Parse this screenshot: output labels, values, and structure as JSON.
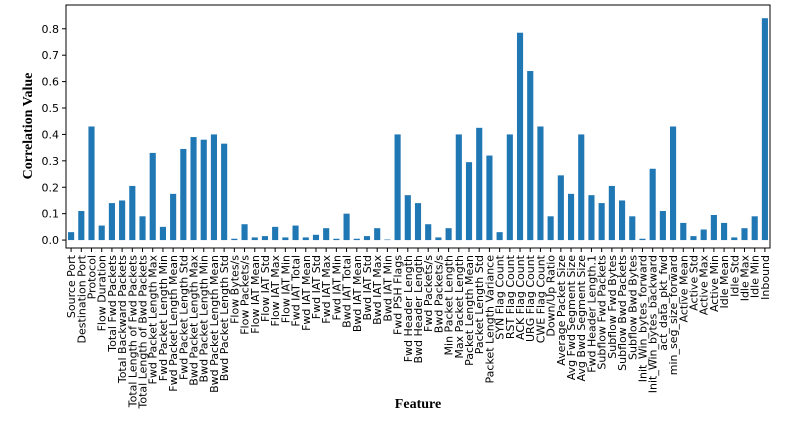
{
  "chart_data": {
    "type": "bar",
    "x_label": "Feature",
    "y_label": "Correlation Value",
    "categories": [
      "Source Port",
      "Destination Port",
      "Protocol",
      "Flow Duration",
      "Total Fwd Packets",
      "Total Backward Packets",
      "Total Length of Fwd Packets",
      "Total Length of Bwd Packets",
      "Fwd Packet Length Max",
      "Fwd Packet Length Min",
      "Fwd Packet Length Mean",
      "Fwd Packet Length Std",
      "Bwd Packet Length Max",
      "Bwd Packet Length Min",
      "Bwd Packet Length Mean",
      "Bwd Packet Length Std",
      "Flow Bytes/s",
      "Flow Packets/s",
      "Flow IAT Mean",
      "Flow IAT Std",
      "Flow IAT Max",
      "Flow IAT Min",
      "Fwd IAT Total",
      "Fwd IAT Mean",
      "Fwd IAT Std",
      "Fwd IAT Max",
      "Fwd IAT Min",
      "Bwd IAT Total",
      "Bwd IAT Mean",
      "Bwd IAT Std",
      "Bwd IAT Max",
      "Bwd IAT Min",
      "Fwd PSH Flags",
      "Fwd Header Length",
      "Bwd Header Length",
      "Fwd Packets/s",
      "Bwd Packets/s",
      "Min Packet Length",
      "Max Packet Length",
      "Packet Length Mean",
      "Packet Length Std",
      "Packet Length Variance",
      "SYN Flag Count",
      "RST Flag Count",
      "ACK Flag Count",
      "URG Flag Count",
      "CWE Flag Count",
      "Down/Up Ratio",
      "Average Packet Size",
      "Avg Fwd Segment Size",
      "Avg Bwd Segment Size",
      "Fwd Header Length.1",
      "Subflow Fwd Packets",
      "Subflow Fwd Bytes",
      "Subflow Bwd Packets",
      "Subflow Bwd Bytes",
      "Init_Win_bytes_forward",
      "Init_Win_bytes_backward",
      "act_data_pkt_fwd",
      "min_seg_size_forward",
      "Active Mean",
      "Active Std",
      "Active Max",
      "Active Min",
      "Idle Mean",
      "Idle Std",
      "Idle Max",
      "Idle Min",
      "Inbound"
    ],
    "values": [
      0.03,
      0.11,
      0.43,
      0.055,
      0.14,
      0.15,
      0.205,
      0.09,
      0.33,
      0.05,
      0.175,
      0.345,
      0.39,
      0.38,
      0.4,
      0.365,
      0.005,
      0.06,
      0.01,
      0.015,
      0.05,
      0.01,
      0.055,
      0.01,
      0.02,
      0.045,
      0.005,
      0.1,
      0.005,
      0.015,
      0.045,
      0.002,
      0.4,
      0.17,
      0.14,
      0.06,
      0.01,
      0.045,
      0.4,
      0.295,
      0.425,
      0.32,
      0.03,
      0.4,
      0.785,
      0.64,
      0.43,
      0.09,
      0.245,
      0.175,
      0.4,
      0.17,
      0.14,
      0.205,
      0.15,
      0.09,
      0.005,
      0.27,
      0.11,
      0.43,
      0.065,
      0.015,
      0.04,
      0.095,
      0.065,
      0.01,
      0.045,
      0.09,
      0.84
    ],
    "color": "#1f77b4",
    "ylim": [
      -0.03,
      0.89
    ],
    "yticks": [
      {
        "value": 0,
        "label": "0.0"
      },
      0.1,
      0.2,
      0.3,
      0.4,
      0.5,
      0.6,
      0.7,
      0.8
    ]
  }
}
